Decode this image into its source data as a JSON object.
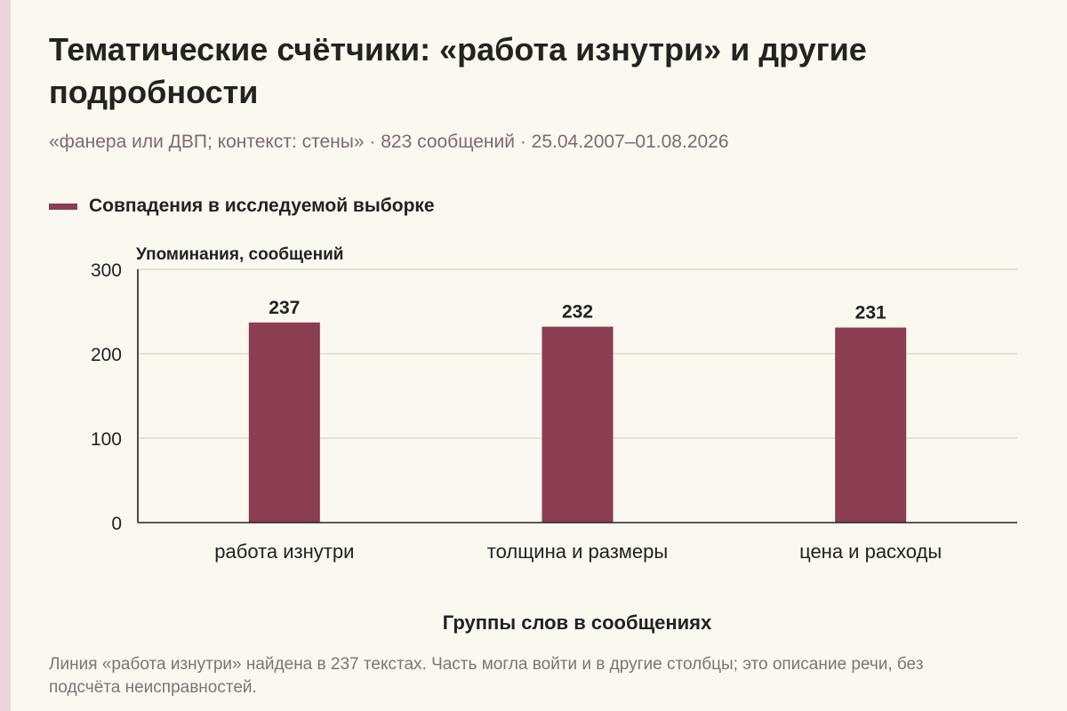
{
  "colors": {
    "bar": "#8b3d52",
    "strip": "#ecd4dc",
    "grid": "#d7d3cc",
    "axis": "#222222"
  },
  "header": {
    "title": "Тематические счётчики: «работа изнутри» и другие подробности",
    "subtitle": "«фанера или ДВП; контекст: стены» · 823 сообщений · 25.04.2007–01.08.2026"
  },
  "legend": {
    "label": "Совпадения в исследуемой выборке"
  },
  "footer": {
    "note": "Линия «работа изнутри» найдена в 237 текстах. Часть могла войти и в другие столбцы; это описание речи, без подсчёта неисправностей."
  },
  "chart_data": {
    "type": "bar",
    "categories": [
      "работа изнутри",
      "толщина и размеры",
      "цена и расходы"
    ],
    "series": [
      {
        "name": "Совпадения в исследуемой выборке",
        "values": [
          237,
          232,
          231
        ]
      }
    ],
    "xlabel": "Группы слов в сообщениях",
    "ylabel": "Упоминания, сообщений",
    "ylim": [
      0,
      300
    ],
    "yticks": [
      0,
      100,
      200,
      300
    ],
    "grid": true,
    "data_labels": true,
    "legend_position": "top-left"
  }
}
